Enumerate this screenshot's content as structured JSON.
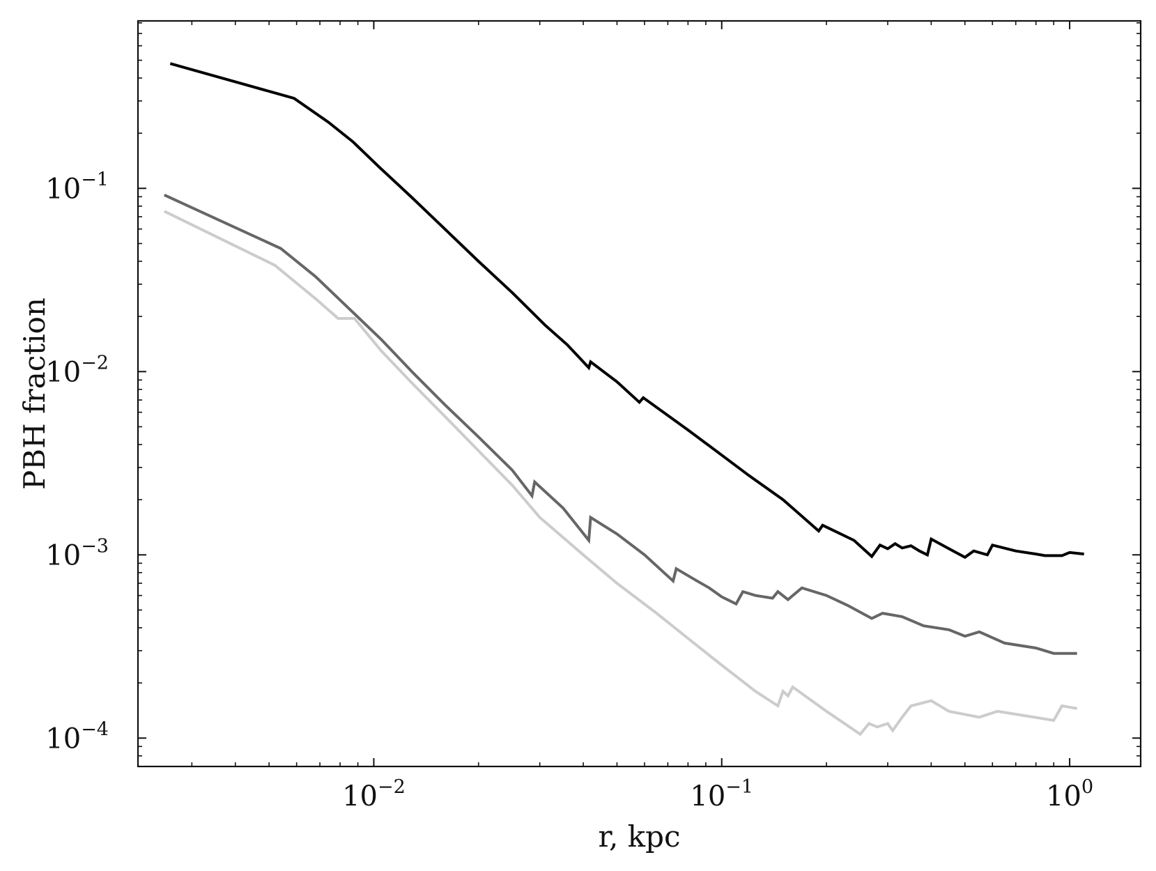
{
  "chart_data": {
    "type": "line",
    "title": "",
    "xlabel": "r, kpc",
    "ylabel": "PBH fraction",
    "xscale": "log",
    "yscale": "log",
    "xlim": [
      0.0021,
      1.6
    ],
    "ylim": [
      7e-05,
      0.82
    ],
    "grid": false,
    "legend": "none",
    "x_ticks": [
      {
        "value": 0.01,
        "base": "10",
        "exp": "−2"
      },
      {
        "value": 0.1,
        "base": "10",
        "exp": "−1"
      },
      {
        "value": 1,
        "base": "10",
        "exp": "0"
      }
    ],
    "y_ticks": [
      {
        "value": 0.0001,
        "base": "10",
        "exp": "−4"
      },
      {
        "value": 0.001,
        "base": "10",
        "exp": "−3"
      },
      {
        "value": 0.01,
        "base": "10",
        "exp": "−2"
      },
      {
        "value": 0.1,
        "base": "10",
        "exp": "−1"
      }
    ],
    "series": [
      {
        "color": "#000000",
        "points": [
          [
            0.0026,
            0.48
          ],
          [
            0.0059,
            0.31
          ],
          [
            0.0074,
            0.23
          ],
          [
            0.0087,
            0.18
          ],
          [
            0.0104,
            0.13
          ],
          [
            0.0128,
            0.09
          ],
          [
            0.016,
            0.06
          ],
          [
            0.02,
            0.04
          ],
          [
            0.025,
            0.027
          ],
          [
            0.031,
            0.018
          ],
          [
            0.036,
            0.014
          ],
          [
            0.0415,
            0.0105
          ],
          [
            0.042,
            0.0113
          ],
          [
            0.05,
            0.0088
          ],
          [
            0.058,
            0.0068
          ],
          [
            0.0595,
            0.0072
          ],
          [
            0.08,
            0.0048
          ],
          [
            0.1,
            0.0035
          ],
          [
            0.12,
            0.0027
          ],
          [
            0.15,
            0.002
          ],
          [
            0.19,
            0.00135
          ],
          [
            0.195,
            0.00145
          ],
          [
            0.24,
            0.0012
          ],
          [
            0.27,
            0.00098
          ],
          [
            0.285,
            0.00113
          ],
          [
            0.3,
            0.00108
          ],
          [
            0.315,
            0.00115
          ],
          [
            0.33,
            0.00109
          ],
          [
            0.35,
            0.00112
          ],
          [
            0.37,
            0.00105
          ],
          [
            0.39,
            0.001
          ],
          [
            0.4,
            0.00122
          ],
          [
            0.45,
            0.00108
          ],
          [
            0.5,
            0.00097
          ],
          [
            0.53,
            0.00105
          ],
          [
            0.58,
            0.001
          ],
          [
            0.6,
            0.00113
          ],
          [
            0.7,
            0.00105
          ],
          [
            0.8,
            0.00101
          ],
          [
            0.85,
            0.00099
          ],
          [
            0.95,
            0.00099
          ],
          [
            1.0,
            0.00103
          ],
          [
            1.1,
            0.00101
          ]
        ]
      },
      {
        "color": "#666666",
        "points": [
          [
            0.0025,
            0.092
          ],
          [
            0.0054,
            0.047
          ],
          [
            0.0068,
            0.033
          ],
          [
            0.0085,
            0.022
          ],
          [
            0.0105,
            0.015
          ],
          [
            0.013,
            0.0098
          ],
          [
            0.016,
            0.0066
          ],
          [
            0.02,
            0.0044
          ],
          [
            0.025,
            0.0029
          ],
          [
            0.0285,
            0.0021
          ],
          [
            0.029,
            0.0025
          ],
          [
            0.035,
            0.0018
          ],
          [
            0.0415,
            0.0012
          ],
          [
            0.042,
            0.0016
          ],
          [
            0.05,
            0.0013
          ],
          [
            0.06,
            0.001
          ],
          [
            0.0725,
            0.00072
          ],
          [
            0.074,
            0.00084
          ],
          [
            0.085,
            0.00072
          ],
          [
            0.092,
            0.00066
          ],
          [
            0.1,
            0.00059
          ],
          [
            0.11,
            0.00054
          ],
          [
            0.115,
            0.00063
          ],
          [
            0.125,
            0.0006
          ],
          [
            0.14,
            0.00058
          ],
          [
            0.145,
            0.00063
          ],
          [
            0.155,
            0.00057
          ],
          [
            0.17,
            0.00066
          ],
          [
            0.2,
            0.0006
          ],
          [
            0.23,
            0.00053
          ],
          [
            0.27,
            0.00045
          ],
          [
            0.29,
            0.00048
          ],
          [
            0.33,
            0.00046
          ],
          [
            0.38,
            0.00041
          ],
          [
            0.45,
            0.00039
          ],
          [
            0.5,
            0.00036
          ],
          [
            0.55,
            0.00038
          ],
          [
            0.65,
            0.00033
          ],
          [
            0.8,
            0.00031
          ],
          [
            0.9,
            0.00029
          ],
          [
            1.05,
            0.00029
          ]
        ]
      },
      {
        "color": "#cccccc",
        "points": [
          [
            0.0025,
            0.075
          ],
          [
            0.0052,
            0.038
          ],
          [
            0.0068,
            0.025
          ],
          [
            0.0079,
            0.0195
          ],
          [
            0.0088,
            0.0195
          ],
          [
            0.0105,
            0.013
          ],
          [
            0.013,
            0.0085
          ],
          [
            0.016,
            0.0057
          ],
          [
            0.02,
            0.0037
          ],
          [
            0.025,
            0.0024
          ],
          [
            0.03,
            0.0016
          ],
          [
            0.04,
            0.001
          ],
          [
            0.05,
            0.0007
          ],
          [
            0.065,
            0.00048
          ],
          [
            0.08,
            0.00035
          ],
          [
            0.1,
            0.00025
          ],
          [
            0.125,
            0.00018
          ],
          [
            0.145,
            0.00015
          ],
          [
            0.15,
            0.00018
          ],
          [
            0.155,
            0.00017
          ],
          [
            0.16,
            0.00019
          ],
          [
            0.2,
            0.00014
          ],
          [
            0.25,
            0.000105
          ],
          [
            0.265,
            0.00012
          ],
          [
            0.28,
            0.000115
          ],
          [
            0.3,
            0.00012
          ],
          [
            0.31,
            0.00011
          ],
          [
            0.33,
            0.00013
          ],
          [
            0.35,
            0.00015
          ],
          [
            0.4,
            0.00016
          ],
          [
            0.45,
            0.00014
          ],
          [
            0.55,
            0.00013
          ],
          [
            0.62,
            0.00014
          ],
          [
            0.7,
            0.000135
          ],
          [
            0.9,
            0.000125
          ],
          [
            0.95,
            0.00015
          ],
          [
            1.05,
            0.000145
          ]
        ]
      }
    ]
  }
}
